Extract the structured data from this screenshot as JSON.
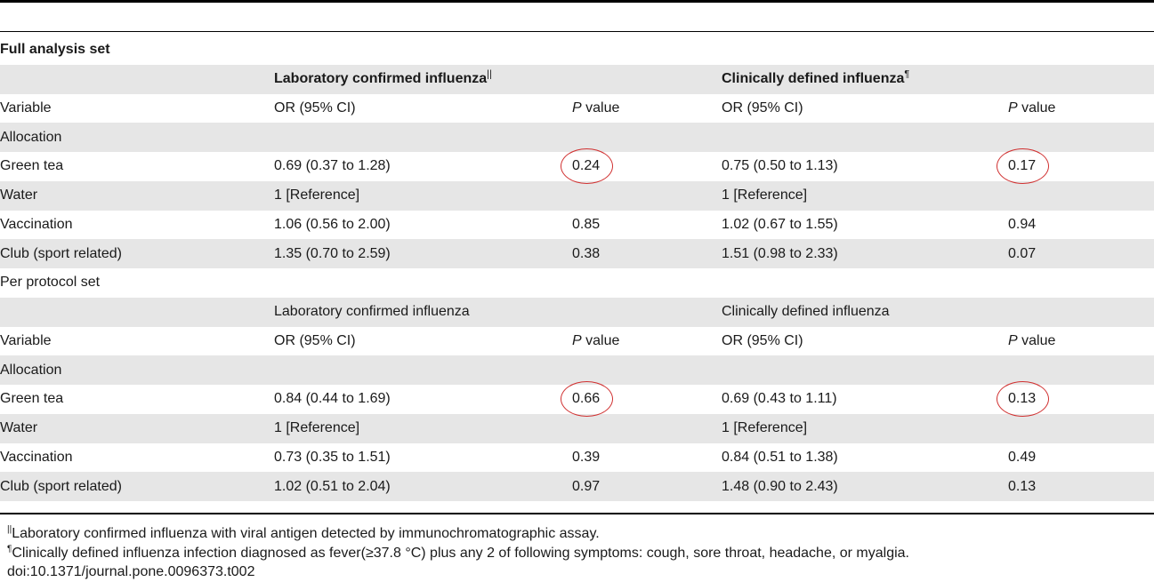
{
  "footnote_symbols": {
    "double_bar": "||",
    "pilcrow": "¶"
  },
  "full": {
    "title": "Full analysis set",
    "header": {
      "lab": "Laboratory confirmed influenza",
      "clin": "Clinically defined influenza"
    },
    "cols": {
      "variable": "Variable",
      "or": "OR (95% CI)",
      "p_italic": "P",
      "p_rest": " value"
    },
    "allocation": "Allocation",
    "rows": [
      {
        "label": "Green tea",
        "lab_or": "0.69 (0.37 to 1.28)",
        "lab_p": "0.24",
        "clin_or": "0.75 (0.50 to 1.13)",
        "clin_p": "0.17"
      },
      {
        "label": "Water",
        "lab_or": "1 [Reference]",
        "lab_p": "",
        "clin_or": "1 [Reference]",
        "clin_p": ""
      },
      {
        "label": "Vaccination",
        "lab_or": "1.06 (0.56 to 2.00)",
        "lab_p": "0.85",
        "clin_or": "1.02 (0.67 to 1.55)",
        "clin_p": "0.94"
      },
      {
        "label": "Club (sport related)",
        "lab_or": "1.35 (0.70 to 2.59)",
        "lab_p": "0.38",
        "clin_or": "1.51 (0.98 to 2.33)",
        "clin_p": "0.07"
      }
    ]
  },
  "pp": {
    "title": "Per protocol set",
    "header": {
      "lab": "Laboratory confirmed influenza",
      "clin": "Clinically defined influenza"
    },
    "cols": {
      "variable": "Variable",
      "or": "OR (95% CI)",
      "p_italic": "P",
      "p_rest": " value"
    },
    "allocation": "Allocation",
    "rows": [
      {
        "label": "Green tea",
        "lab_or": "0.84 (0.44 to 1.69)",
        "lab_p": "0.66",
        "clin_or": "0.69 (0.43 to 1.11)",
        "clin_p": "0.13"
      },
      {
        "label": "Water",
        "lab_or": "1 [Reference]",
        "lab_p": "",
        "clin_or": "1 [Reference]",
        "clin_p": ""
      },
      {
        "label": "Vaccination",
        "lab_or": "0.73 (0.35 to 1.51)",
        "lab_p": "0.39",
        "clin_or": "0.84 (0.51 to 1.38)",
        "clin_p": "0.49"
      },
      {
        "label": "Club (sport related)",
        "lab_or": "1.02 (0.51 to 2.04)",
        "lab_p": "0.97",
        "clin_or": "1.48 (0.90 to 2.43)",
        "clin_p": "0.13"
      }
    ]
  },
  "footnotes": {
    "lab": "Laboratory confirmed influenza with viral antigen detected by immunochromatographic assay.",
    "clin": "Clinically defined influenza infection diagnosed as fever(≥37.8 °C) plus any 2 of following symptoms: cough, sore throat, headache, or myalgia.",
    "doi": "doi:10.1371/journal.pone.0096373.t002"
  },
  "colors": {
    "row_shade": "#e6e6e6",
    "highlight_circle": "#d03030",
    "rules": "#000000"
  }
}
